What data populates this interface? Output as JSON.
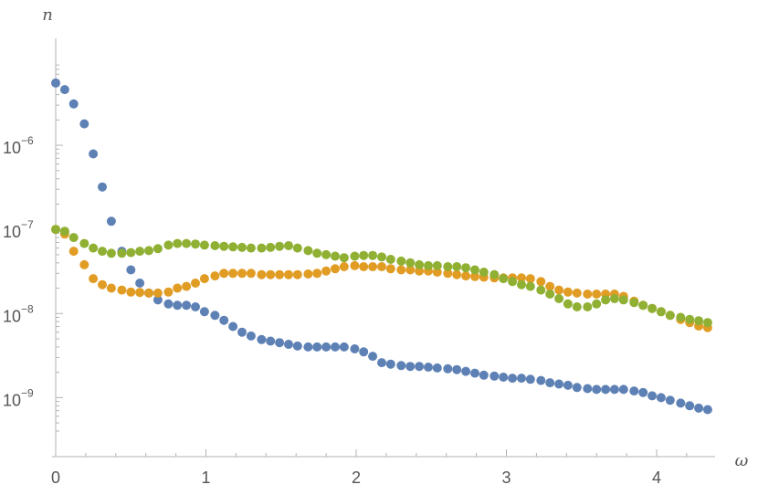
{
  "chart_data": {
    "type": "scatter",
    "xlabel": "ω",
    "ylabel": "n",
    "y_scale": "log",
    "xlim": [
      -0.02,
      4.43
    ],
    "ylim": [
      4e-10,
      1e-05
    ],
    "x_ticks": [
      {
        "value": 0,
        "label": "0"
      },
      {
        "value": 1,
        "label": "1"
      },
      {
        "value": 2,
        "label": "2"
      },
      {
        "value": 3,
        "label": "3"
      },
      {
        "value": 4,
        "label": "4"
      }
    ],
    "y_ticks": [
      {
        "value": 1e-06,
        "base": "10",
        "exp": "−6"
      },
      {
        "value": 1e-07,
        "base": "10",
        "exp": "−7"
      },
      {
        "value": 1e-08,
        "base": "10",
        "exp": "−8"
      },
      {
        "value": 1e-09,
        "base": "10",
        "exp": "−9"
      }
    ],
    "grid": false,
    "x": [
      0.0,
      0.06,
      0.12,
      0.19,
      0.25,
      0.31,
      0.37,
      0.44,
      0.5,
      0.56,
      0.62,
      0.68,
      0.75,
      0.81,
      0.87,
      0.93,
      0.99,
      1.06,
      1.12,
      1.18,
      1.24,
      1.3,
      1.37,
      1.43,
      1.49,
      1.55,
      1.61,
      1.68,
      1.74,
      1.8,
      1.86,
      1.92,
      1.99,
      2.05,
      2.11,
      2.17,
      2.23,
      2.3,
      2.36,
      2.42,
      2.48,
      2.54,
      2.61,
      2.67,
      2.73,
      2.79,
      2.85,
      2.92,
      2.98,
      3.04,
      3.1,
      3.16,
      3.23,
      3.29,
      3.35,
      3.41,
      3.47,
      3.54,
      3.6,
      3.66,
      3.72,
      3.78,
      3.85,
      3.91,
      3.97,
      4.03,
      4.09,
      4.16,
      4.22,
      4.28,
      4.34
    ],
    "series": [
      {
        "color": "#5e81b5",
        "values": [
          5.5e-06,
          4.6e-06,
          3.1e-06,
          1.8e-06,
          7.9e-07,
          3.2e-07,
          1.25e-07,
          5.5e-08,
          3.3e-08,
          2.3e-08,
          1.75e-08,
          1.45e-08,
          1.3e-08,
          1.25e-08,
          1.25e-08,
          1.2e-08,
          1.05e-08,
          9.5e-09,
          8.3e-09,
          7e-09,
          6e-09,
          5.4e-09,
          4.9e-09,
          4.7e-09,
          4.5e-09,
          4.3e-09,
          4.1e-09,
          4e-09,
          4e-09,
          4e-09,
          4e-09,
          4e-09,
          3.8e-09,
          3.5e-09,
          3.1e-09,
          2.6e-09,
          2.5e-09,
          2.4e-09,
          2.35e-09,
          2.35e-09,
          2.3e-09,
          2.25e-09,
          2.2e-09,
          2.15e-09,
          2.05e-09,
          1.95e-09,
          1.85e-09,
          1.8e-09,
          1.75e-09,
          1.7e-09,
          1.7e-09,
          1.65e-09,
          1.6e-09,
          1.5e-09,
          1.45e-09,
          1.4e-09,
          1.32e-09,
          1.28e-09,
          1.25e-09,
          1.25e-09,
          1.25e-09,
          1.25e-09,
          1.2e-09,
          1.15e-09,
          1.05e-09,
          1e-09,
          9.3e-10,
          8.6e-10,
          8e-10,
          7.5e-10,
          7.2e-10
        ]
      },
      {
        "color": "#e19c24",
        "values": [
          1e-07,
          8.8e-08,
          5.5e-08,
          3.8e-08,
          2.6e-08,
          2.2e-08,
          2e-08,
          1.9e-08,
          1.8e-08,
          1.78e-08,
          1.75e-08,
          1.75e-08,
          1.8e-08,
          2e-08,
          2.1e-08,
          2.3e-08,
          2.6e-08,
          2.8e-08,
          3e-08,
          3e-08,
          3e-08,
          3e-08,
          2.9e-08,
          2.9e-08,
          2.9e-08,
          2.9e-08,
          2.9e-08,
          2.95e-08,
          3e-08,
          3.2e-08,
          3.4e-08,
          3.6e-08,
          3.7e-08,
          3.6e-08,
          3.6e-08,
          3.6e-08,
          3.4e-08,
          3.3e-08,
          3.3e-08,
          3.2e-08,
          3.2e-08,
          3.1e-08,
          3e-08,
          2.9e-08,
          2.8e-08,
          2.75e-08,
          2.7e-08,
          2.65e-08,
          2.65e-08,
          2.65e-08,
          2.65e-08,
          2.6e-08,
          2.4e-08,
          2.1e-08,
          1.9e-08,
          1.8e-08,
          1.75e-08,
          1.7e-08,
          1.7e-08,
          1.7e-08,
          1.7e-08,
          1.6e-08,
          1.4e-08,
          1.25e-08,
          1.15e-08,
          1.05e-08,
          9.5e-09,
          8.5e-09,
          7.8e-09,
          7.1e-09,
          6.8e-09
        ]
      },
      {
        "color": "#8fb032",
        "values": [
          1e-07,
          9.5e-08,
          8e-08,
          6.8e-08,
          6e-08,
          5.5e-08,
          5.2e-08,
          5.2e-08,
          5.3e-08,
          5.5e-08,
          5.6e-08,
          5.9e-08,
          6.5e-08,
          6.8e-08,
          6.8e-08,
          6.7e-08,
          6.5e-08,
          6.4e-08,
          6.3e-08,
          6.2e-08,
          6.1e-08,
          6e-08,
          6e-08,
          6.1e-08,
          6.3e-08,
          6.4e-08,
          6e-08,
          5.6e-08,
          5.2e-08,
          5e-08,
          4.8e-08,
          4.6e-08,
          4.8e-08,
          4.9e-08,
          4.9e-08,
          4.7e-08,
          4.4e-08,
          4.2e-08,
          4e-08,
          3.8e-08,
          3.7e-08,
          3.7e-08,
          3.6e-08,
          3.6e-08,
          3.5e-08,
          3.3e-08,
          3.1e-08,
          2.9e-08,
          2.6e-08,
          2.4e-08,
          2.2e-08,
          2.1e-08,
          1.9e-08,
          1.7e-08,
          1.5e-08,
          1.3e-08,
          1.2e-08,
          1.2e-08,
          1.3e-08,
          1.45e-08,
          1.5e-08,
          1.45e-08,
          1.35e-08,
          1.25e-08,
          1.15e-08,
          1.05e-08,
          9.5e-09,
          9e-09,
          8.5e-09,
          8.2e-09,
          7.8e-09
        ]
      }
    ]
  }
}
